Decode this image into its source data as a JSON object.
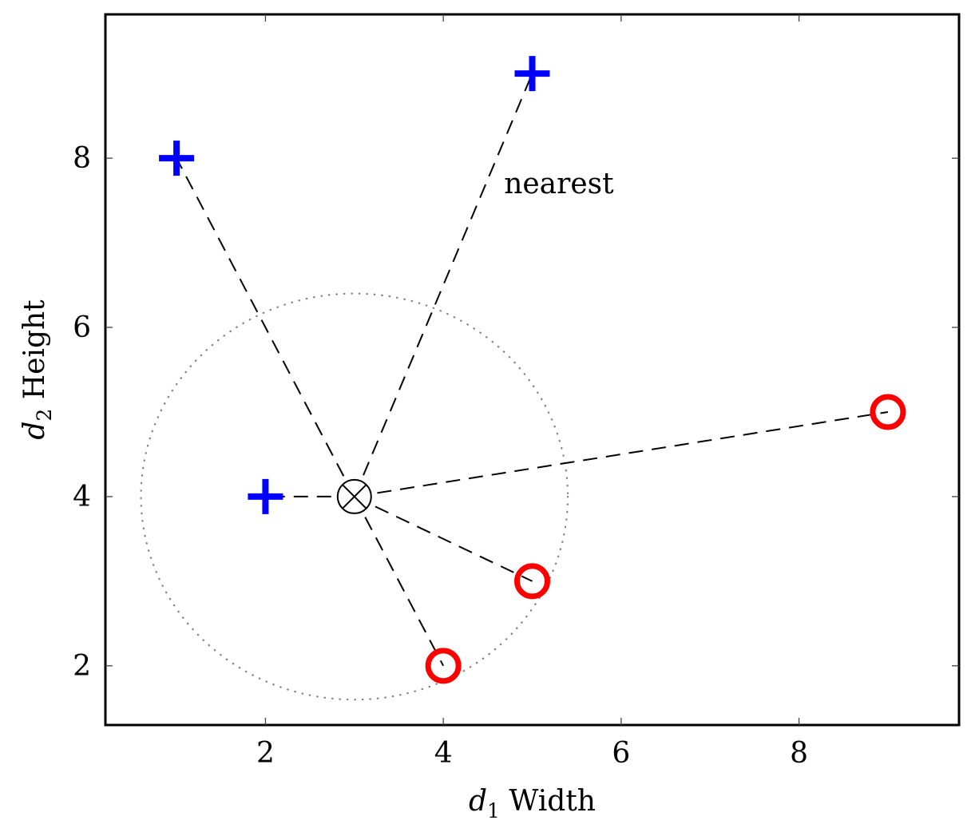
{
  "chart_data": {
    "type": "scatter",
    "title": "",
    "xlabel": {
      "var": "d",
      "sub": "1",
      "text": "Width"
    },
    "ylabel": {
      "var": "d",
      "sub": "2",
      "text": "Height"
    },
    "xlim": [
      0.2,
      9.8
    ],
    "ylim": [
      1.3,
      9.7
    ],
    "xticks": [
      2,
      4,
      6,
      8
    ],
    "yticks": [
      2,
      4,
      6,
      8
    ],
    "grid": false,
    "legend": "none",
    "series": [
      {
        "marker": "plus",
        "color": "#0000ff",
        "points": [
          [
            1,
            8
          ],
          [
            5,
            9
          ],
          [
            2,
            4
          ]
        ]
      },
      {
        "marker": "circle",
        "color": "#ff0000",
        "points": [
          [
            5,
            3
          ],
          [
            4,
            2
          ],
          [
            9,
            5
          ]
        ]
      }
    ],
    "query_point": {
      "x": 3,
      "y": 4,
      "marker": "otimes"
    },
    "radius_circle": {
      "center": [
        3,
        4
      ],
      "radius": 2.4,
      "style": "dotted"
    },
    "annotations": [
      {
        "text": "nearest",
        "x": 5.3,
        "y": 7.7
      }
    ]
  }
}
